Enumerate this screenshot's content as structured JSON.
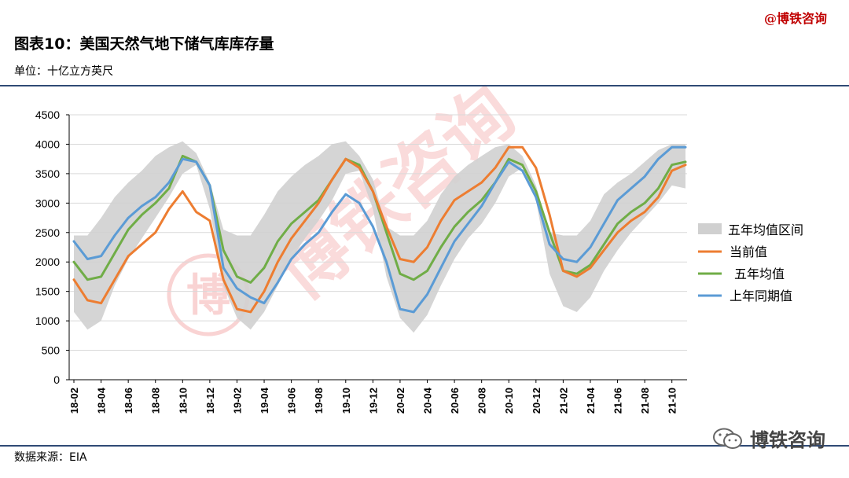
{
  "header": {
    "brand": "@博铁咨询",
    "title": "图表10：美国天然气地下储气库库存量",
    "unit": "单位：十亿立方英尺"
  },
  "footer": {
    "source": "数据来源：EIA",
    "wechat_label": "博铁咨询",
    "wechat_icon": "wechat-icon"
  },
  "watermark": {
    "text": "博铁咨询",
    "seal": "博"
  },
  "colors": {
    "band": "#d0d0d0",
    "current": "#ed7d31",
    "avg": "#70ad47",
    "prior": "#5b9bd5",
    "rule": "#2f4a75",
    "watermark": "#f2a0a0"
  },
  "chart_data": {
    "type": "line",
    "title": "",
    "xlabel": "",
    "ylabel": "",
    "ylim": [
      0,
      4500
    ],
    "yticks": [
      0,
      500,
      1000,
      1500,
      2000,
      2500,
      3000,
      3500,
      4000,
      4500
    ],
    "xticks": [
      "18-02",
      "18-04",
      "18-06",
      "18-08",
      "18-10",
      "18-12",
      "19-02",
      "19-04",
      "19-06",
      "19-08",
      "19-10",
      "19-12",
      "20-02",
      "20-04",
      "20-06",
      "20-08",
      "20-10",
      "20-12",
      "21-02",
      "21-04",
      "21-06",
      "21-08",
      "21-10"
    ],
    "x": [
      "18-02",
      "18-03",
      "18-04",
      "18-05",
      "18-06",
      "18-07",
      "18-08",
      "18-09",
      "18-10",
      "18-11",
      "18-12",
      "19-01",
      "19-02",
      "19-03",
      "19-04",
      "19-05",
      "19-06",
      "19-07",
      "19-08",
      "19-09",
      "19-10",
      "19-11",
      "19-12",
      "20-01",
      "20-02",
      "20-03",
      "20-04",
      "20-05",
      "20-06",
      "20-07",
      "20-08",
      "20-09",
      "20-10",
      "20-11",
      "20-12",
      "21-01",
      "21-02",
      "21-03",
      "21-04",
      "21-05",
      "21-06",
      "21-07",
      "21-08",
      "21-09",
      "21-10",
      "21-11"
    ],
    "legend_position": "right",
    "grid": true,
    "band": {
      "name": "五年均值区间",
      "low": [
        1150,
        850,
        1000,
        1600,
        2050,
        2400,
        2750,
        3100,
        3500,
        3650,
        2900,
        1600,
        1050,
        850,
        1150,
        1600,
        2050,
        2400,
        2700,
        3050,
        3500,
        3550,
        2900,
        1750,
        1050,
        800,
        1100,
        1600,
        2050,
        2400,
        2650,
        3000,
        3450,
        3600,
        3050,
        1800,
        1250,
        1150,
        1400,
        1850,
        2200,
        2500,
        2750,
        3000,
        3300,
        3250
      ],
      "high": [
        2450,
        2450,
        2750,
        3100,
        3350,
        3550,
        3800,
        3950,
        4050,
        3850,
        3350,
        2550,
        2450,
        2450,
        2800,
        3200,
        3450,
        3650,
        3800,
        4000,
        4050,
        3800,
        3400,
        2600,
        2450,
        2450,
        2700,
        3150,
        3450,
        3650,
        3800,
        3950,
        4000,
        3800,
        3300,
        2500,
        2450,
        2450,
        2700,
        3150,
        3350,
        3500,
        3700,
        3900,
        4000,
        4000
      ]
    },
    "series": [
      {
        "name": "当前值",
        "values": [
          1700,
          1350,
          1300,
          1700,
          2100,
          2300,
          2500,
          2900,
          3200,
          2850,
          2700,
          1700,
          1200,
          1150,
          1500,
          2000,
          2400,
          2700,
          3000,
          3400,
          3750,
          3600,
          3200,
          2600,
          2050,
          2000,
          2250,
          2700,
          3050,
          3200,
          3350,
          3600,
          3950,
          3950,
          3600,
          2800,
          1850,
          1750,
          1900,
          2200,
          2500,
          2700,
          2850,
          3100,
          3550,
          3650
        ]
      },
      {
        "name": "五年均值",
        "values": [
          2000,
          1700,
          1750,
          2150,
          2550,
          2800,
          3000,
          3250,
          3800,
          3700,
          3300,
          2200,
          1750,
          1650,
          1900,
          2350,
          2650,
          2850,
          3050,
          3400,
          3750,
          3650,
          3200,
          2500,
          1800,
          1700,
          1850,
          2250,
          2600,
          2850,
          3050,
          3350,
          3750,
          3650,
          3200,
          2500,
          1850,
          1800,
          1950,
          2300,
          2650,
          2850,
          3000,
          3250,
          3650,
          3700
        ]
      },
      {
        "name": "上年同期值",
        "values": [
          2350,
          2050,
          2100,
          2450,
          2750,
          2950,
          3100,
          3350,
          3750,
          3700,
          3300,
          1900,
          1550,
          1400,
          1300,
          1650,
          2050,
          2300,
          2500,
          2850,
          3150,
          3000,
          2600,
          2000,
          1200,
          1150,
          1450,
          1900,
          2350,
          2650,
          2950,
          3350,
          3700,
          3550,
          3100,
          2300,
          2050,
          2000,
          2250,
          2650,
          3050,
          3250,
          3450,
          3750,
          3950,
          3950
        ]
      }
    ]
  }
}
